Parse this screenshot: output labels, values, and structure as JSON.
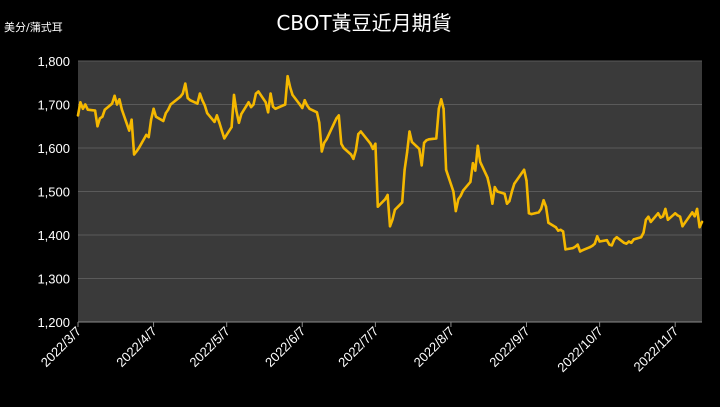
{
  "chart_data": {
    "type": "line",
    "title": "CBOT黃豆近月期貨",
    "ylabel": "美分/蒲式耳",
    "xlabel": "",
    "ylim": [
      1200,
      1800
    ],
    "yticks": [
      1200,
      1300,
      1400,
      1500,
      1600,
      1700,
      1800
    ],
    "ytick_labels": [
      "1,200",
      "1,300",
      "1,400",
      "1,500",
      "1,600",
      "1,700",
      "1,800"
    ],
    "xticks": [
      "2022-03-07",
      "2022-04-07",
      "2022-05-07",
      "2022-06-07",
      "2022-07-07",
      "2022-08-07",
      "2022-09-07",
      "2022-10-07",
      "2022-11-07"
    ],
    "xtick_labels": [
      "2022/3/7",
      "2022/4/7",
      "2022/5/7",
      "2022/6/7",
      "2022/7/7",
      "2022/8/7",
      "2022/9/7",
      "2022/10/7",
      "2022/11/7"
    ],
    "xlim": [
      "2022-03-07",
      "2022-11-18"
    ],
    "grid": true,
    "colors": {
      "background": "#000000",
      "plot_area": "#3a3a3a",
      "grid": "#5a5a5a",
      "line": "#f5b800",
      "text": "#ffffff"
    },
    "series": [
      {
        "x": [
          "2022-03-07",
          "2022-03-08",
          "2022-03-09",
          "2022-03-10",
          "2022-03-11",
          "2022-03-14",
          "2022-03-15",
          "2022-03-16",
          "2022-03-17",
          "2022-03-18",
          "2022-03-21",
          "2022-03-22",
          "2022-03-23",
          "2022-03-24",
          "2022-03-25",
          "2022-03-28",
          "2022-03-29",
          "2022-03-30",
          "2022-03-31",
          "2022-04-01",
          "2022-04-04",
          "2022-04-05",
          "2022-04-06",
          "2022-04-07",
          "2022-04-08",
          "2022-04-11",
          "2022-04-12",
          "2022-04-13",
          "2022-04-14",
          "2022-04-18",
          "2022-04-19",
          "2022-04-20",
          "2022-04-21",
          "2022-04-22",
          "2022-04-25",
          "2022-04-26",
          "2022-04-27",
          "2022-04-28",
          "2022-04-29",
          "2022-05-02",
          "2022-05-03",
          "2022-05-04",
          "2022-05-05",
          "2022-05-06",
          "2022-05-09",
          "2022-05-10",
          "2022-05-11",
          "2022-05-12",
          "2022-05-13",
          "2022-05-16",
          "2022-05-17",
          "2022-05-18",
          "2022-05-19",
          "2022-05-20",
          "2022-05-23",
          "2022-05-24",
          "2022-05-25",
          "2022-05-26",
          "2022-05-27",
          "2022-05-31",
          "2022-06-01",
          "2022-06-02",
          "2022-06-03",
          "2022-06-06",
          "2022-06-07",
          "2022-06-08",
          "2022-06-09",
          "2022-06-10",
          "2022-06-13",
          "2022-06-14",
          "2022-06-15",
          "2022-06-16",
          "2022-06-17",
          "2022-06-21",
          "2022-06-22",
          "2022-06-23",
          "2022-06-24",
          "2022-06-27",
          "2022-06-28",
          "2022-06-29",
          "2022-06-30",
          "2022-07-01",
          "2022-07-05",
          "2022-07-06",
          "2022-07-07",
          "2022-07-08",
          "2022-07-11",
          "2022-07-12",
          "2022-07-13",
          "2022-07-14",
          "2022-07-15",
          "2022-07-18",
          "2022-07-19",
          "2022-07-20",
          "2022-07-21",
          "2022-07-22",
          "2022-07-25",
          "2022-07-26",
          "2022-07-27",
          "2022-07-28",
          "2022-07-29",
          "2022-08-01",
          "2022-08-02",
          "2022-08-03",
          "2022-08-04",
          "2022-08-05",
          "2022-08-08",
          "2022-08-09",
          "2022-08-10",
          "2022-08-11",
          "2022-08-12",
          "2022-08-15",
          "2022-08-16",
          "2022-08-17",
          "2022-08-18",
          "2022-08-19",
          "2022-08-22",
          "2022-08-23",
          "2022-08-24",
          "2022-08-25",
          "2022-08-26",
          "2022-08-29",
          "2022-08-30",
          "2022-08-31",
          "2022-09-01",
          "2022-09-02",
          "2022-09-06",
          "2022-09-07",
          "2022-09-08",
          "2022-09-09",
          "2022-09-12",
          "2022-09-13",
          "2022-09-14",
          "2022-09-15",
          "2022-09-16",
          "2022-09-19",
          "2022-09-20",
          "2022-09-21",
          "2022-09-22",
          "2022-09-23",
          "2022-09-26",
          "2022-09-27",
          "2022-09-28",
          "2022-09-29",
          "2022-09-30",
          "2022-10-03",
          "2022-10-04",
          "2022-10-05",
          "2022-10-06",
          "2022-10-07",
          "2022-10-10",
          "2022-10-11",
          "2022-10-12",
          "2022-10-13",
          "2022-10-14",
          "2022-10-17",
          "2022-10-18",
          "2022-10-19",
          "2022-10-20",
          "2022-10-21",
          "2022-10-24",
          "2022-10-25",
          "2022-10-26",
          "2022-10-27",
          "2022-10-28",
          "2022-10-31",
          "2022-11-01",
          "2022-11-02",
          "2022-11-03",
          "2022-11-04",
          "2022-11-07",
          "2022-11-08",
          "2022-11-09",
          "2022-11-10",
          "2022-11-11",
          "2022-11-14",
          "2022-11-15",
          "2022-11-16",
          "2022-11-17",
          "2022-11-18"
        ],
        "values": [
          1675,
          1705,
          1690,
          1700,
          1688,
          1686,
          1650,
          1668,
          1672,
          1688,
          1702,
          1720,
          1700,
          1712,
          1688,
          1640,
          1665,
          1585,
          1592,
          1600,
          1630,
          1625,
          1665,
          1690,
          1672,
          1662,
          1680,
          1688,
          1700,
          1718,
          1725,
          1748,
          1715,
          1710,
          1702,
          1725,
          1710,
          1698,
          1680,
          1660,
          1675,
          1658,
          1640,
          1622,
          1648,
          1722,
          1685,
          1658,
          1678,
          1705,
          1694,
          1700,
          1725,
          1730,
          1705,
          1682,
          1725,
          1695,
          1690,
          1700,
          1765,
          1740,
          1722,
          1700,
          1692,
          1710,
          1698,
          1690,
          1682,
          1658,
          1592,
          1612,
          1620,
          1668,
          1675,
          1610,
          1600,
          1585,
          1575,
          1595,
          1632,
          1638,
          1610,
          1598,
          1610,
          1465,
          1482,
          1492,
          1420,
          1435,
          1458,
          1475,
          1550,
          1590,
          1638,
          1614,
          1598,
          1560,
          1612,
          1618,
          1620,
          1622,
          1690,
          1712,
          1690,
          1550,
          1500,
          1455,
          1482,
          1490,
          1502,
          1522,
          1565,
          1548,
          1605,
          1568,
          1532,
          1508,
          1472,
          1510,
          1500,
          1495,
          1472,
          1478,
          1500,
          1518,
          1550,
          1525,
          1450,
          1448,
          1452,
          1460,
          1480,
          1465,
          1428,
          1418,
          1410,
          1412,
          1408,
          1367,
          1370,
          1373,
          1378,
          1362,
          1365,
          1372,
          1375,
          1380,
          1397,
          1385,
          1388,
          1378,
          1376,
          1390,
          1395,
          1382,
          1380,
          1385,
          1382,
          1390,
          1395,
          1405,
          1435,
          1442,
          1430,
          1450,
          1440,
          1443,
          1460,
          1435,
          1450,
          1445,
          1442,
          1420,
          1428,
          1452,
          1443,
          1460,
          1418,
          1430
        ]
      }
    ]
  }
}
